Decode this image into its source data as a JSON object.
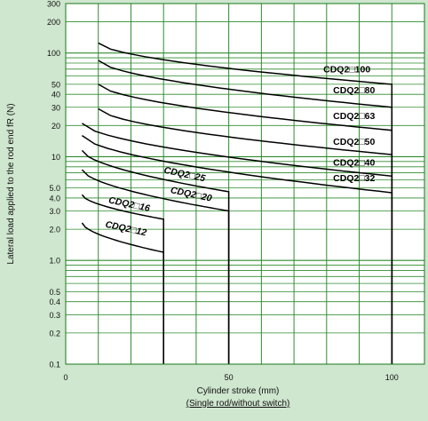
{
  "chart_data": {
    "type": "line",
    "xlabel": "Cylinder stroke (mm)",
    "xlabel_sub": "(Single rod/without switch)",
    "ylabel": "Lateral load applied to the rod end fR (N)",
    "xlim": [
      0,
      110
    ],
    "ylim": [
      0.1,
      300
    ],
    "y_scale": "log",
    "grid": true,
    "x_ticks": [
      "0",
      "50",
      "100"
    ],
    "y_ticks": [
      {
        "v": 300,
        "t": "300"
      },
      {
        "v": 200,
        "t": "200"
      },
      {
        "v": 100,
        "t": "100"
      },
      {
        "v": 50,
        "t": "50"
      },
      {
        "v": 40,
        "t": "40"
      },
      {
        "v": 30,
        "t": "30"
      },
      {
        "v": 20,
        "t": "20"
      },
      {
        "v": 10,
        "t": "10"
      },
      {
        "v": 5,
        "t": "5.0"
      },
      {
        "v": 4,
        "t": "4.0"
      },
      {
        "v": 3,
        "t": "3.0"
      },
      {
        "v": 2,
        "t": "2.0"
      },
      {
        "v": 1,
        "t": "1.0"
      },
      {
        "v": 0.5,
        "t": "0.5"
      },
      {
        "v": 0.4,
        "t": "0.4"
      },
      {
        "v": 0.3,
        "t": "0.3"
      },
      {
        "v": 0.2,
        "t": "0.2"
      },
      {
        "v": 0.1,
        "t": "0.1"
      }
    ],
    "series": [
      {
        "name": "CDQ2□100",
        "x": [
          10,
          100
        ],
        "y": [
          125,
          50
        ],
        "label_pos": [
          79,
          65
        ]
      },
      {
        "name": "CDQ2□80",
        "x": [
          10,
          100
        ],
        "y": [
          85,
          30
        ],
        "label_pos": [
          82,
          41
        ]
      },
      {
        "name": "CDQ2□63",
        "x": [
          10,
          100
        ],
        "y": [
          50,
          18
        ],
        "label_pos": [
          82,
          23
        ]
      },
      {
        "name": "CDQ2□50",
        "x": [
          10,
          100
        ],
        "y": [
          29,
          10.5
        ],
        "label_pos": [
          82,
          13
        ]
      },
      {
        "name": "CDQ2□40",
        "x": [
          5,
          100
        ],
        "y": [
          21,
          6.5
        ],
        "label_pos": [
          82,
          8.2
        ]
      },
      {
        "name": "CDQ2□32",
        "x": [
          5,
          100
        ],
        "y": [
          16,
          4.5
        ],
        "label_pos": [
          82,
          5.8
        ]
      },
      {
        "name": "CDQ2□25",
        "x": [
          5,
          50
        ],
        "y": [
          11.5,
          4.6
        ],
        "label_pos": [
          30,
          7.0
        ]
      },
      {
        "name": "CDQ2□20",
        "x": [
          5,
          50
        ],
        "y": [
          7.5,
          3.0
        ],
        "label_pos": [
          32,
          4.5
        ]
      },
      {
        "name": "CDQ2□16",
        "x": [
          5,
          30
        ],
        "y": [
          4.3,
          2.5
        ],
        "label_pos": [
          13,
          3.6
        ]
      },
      {
        "name": "CDQ2□12",
        "x": [
          5,
          30
        ],
        "y": [
          2.3,
          1.2
        ],
        "label_pos": [
          12,
          2.1
        ]
      }
    ]
  }
}
